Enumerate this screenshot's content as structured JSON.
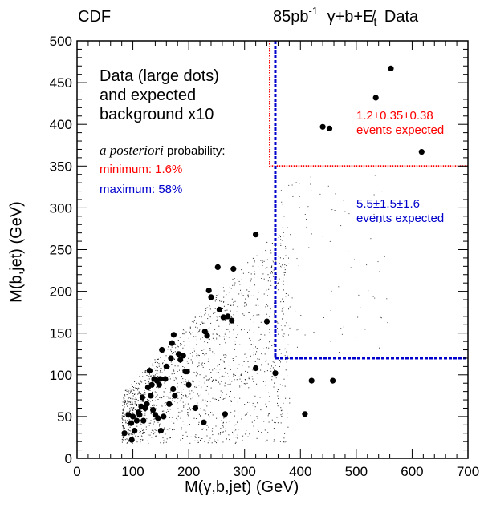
{
  "header": {
    "left": "CDF",
    "lumi": "85pb",
    "lumi_exp": "-1",
    "channel": "γ+b+E̸",
    "channel_sub": "t",
    "data": "Data"
  },
  "notes": {
    "line1": "Data (large dots)",
    "line2": "and expected",
    "line3": "background x10",
    "apost_italic": "a posteriori",
    "apost_rest": " probability:",
    "min": "minimum: 1.6%",
    "max": "maximum: 58%",
    "region_red_1": "1.2±0.35±0.38",
    "region_red_2": "events expected",
    "region_blue_1": "5.5±1.5±1.6",
    "region_blue_2": "events expected"
  },
  "colors": {
    "red": "#ff0000",
    "blue": "#0000cc"
  },
  "chart_data": {
    "type": "scatter",
    "xlabel": "M(γ,b,jet) (GeV)",
    "ylabel": "M(b,jet) (GeV)",
    "xlim": [
      0,
      700
    ],
    "ylim": [
      0,
      500
    ],
    "x_ticks": [
      0,
      100,
      200,
      300,
      400,
      500,
      600,
      700
    ],
    "y_ticks": [
      0,
      50,
      100,
      150,
      200,
      250,
      300,
      350,
      400,
      450,
      500
    ],
    "grid": false,
    "regions": [
      {
        "color": "#ff0000",
        "x_min": 345,
        "y_min": 350,
        "style": "dotted"
      },
      {
        "color": "#0000cc",
        "x_min": 355,
        "y_min": 120,
        "style": "dashed"
      }
    ],
    "points": [
      [
        85,
        30
      ],
      [
        92,
        52
      ],
      [
        97,
        42
      ],
      [
        98,
        22
      ],
      [
        100,
        50
      ],
      [
        103,
        33
      ],
      [
        107,
        45
      ],
      [
        110,
        55
      ],
      [
        112,
        52
      ],
      [
        115,
        62
      ],
      [
        117,
        73
      ],
      [
        119,
        45
      ],
      [
        122,
        60
      ],
      [
        125,
        65
      ],
      [
        127,
        85
      ],
      [
        130,
        105
      ],
      [
        132,
        75
      ],
      [
        134,
        88
      ],
      [
        136,
        58
      ],
      [
        138,
        95
      ],
      [
        140,
        52
      ],
      [
        143,
        93
      ],
      [
        145,
        48
      ],
      [
        147,
        88
      ],
      [
        149,
        95
      ],
      [
        150,
        33
      ],
      [
        152,
        130
      ],
      [
        155,
        50
      ],
      [
        158,
        95
      ],
      [
        160,
        110
      ],
      [
        165,
        65
      ],
      [
        168,
        120
      ],
      [
        170,
        138
      ],
      [
        172,
        83
      ],
      [
        173,
        148
      ],
      [
        175,
        75
      ],
      [
        182,
        125
      ],
      [
        185,
        118
      ],
      [
        190,
        123
      ],
      [
        194,
        104
      ],
      [
        197,
        104
      ],
      [
        200,
        88
      ],
      [
        212,
        60
      ],
      [
        227,
        43
      ],
      [
        229,
        152
      ],
      [
        233,
        147
      ],
      [
        236,
        201
      ],
      [
        240,
        193
      ],
      [
        252,
        229
      ],
      [
        255,
        178
      ],
      [
        262,
        169
      ],
      [
        265,
        53
      ],
      [
        270,
        170
      ],
      [
        277,
        165
      ],
      [
        280,
        227
      ],
      [
        320,
        268
      ],
      [
        320,
        108
      ],
      [
        340,
        164
      ],
      [
        355,
        102
      ],
      [
        408,
        53
      ],
      [
        420,
        93
      ],
      [
        440,
        397
      ],
      [
        452,
        395
      ],
      [
        458,
        93
      ],
      [
        535,
        432
      ],
      [
        562,
        467
      ],
      [
        617,
        367
      ]
    ]
  }
}
